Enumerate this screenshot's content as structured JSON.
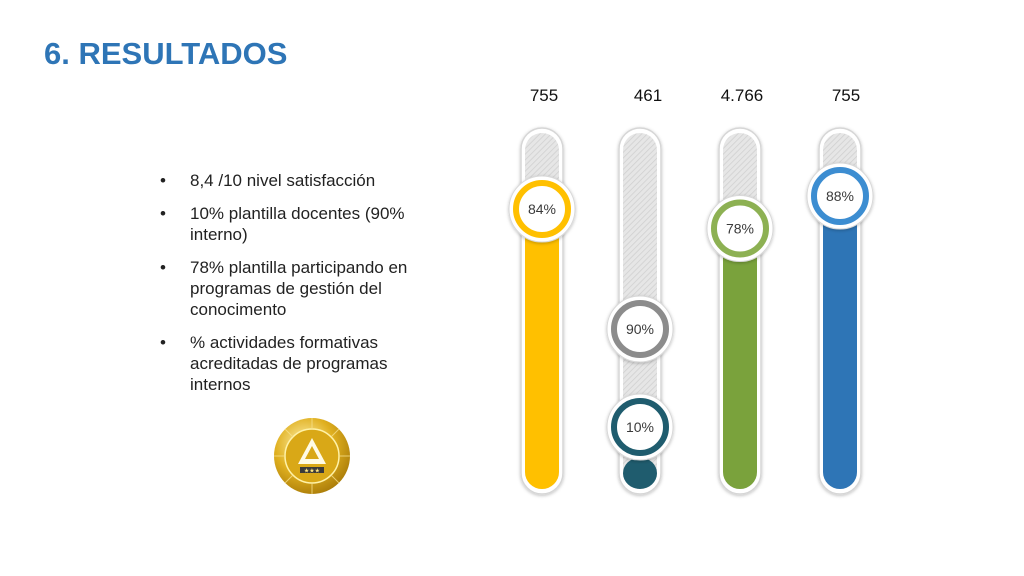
{
  "slide": {
    "title": "6. RESULTADOS",
    "bullets": [
      "8,4 /10 nivel satisfacción",
      "10% plantilla docentes (90% interno)",
      "78% plantilla participando en programas de gestión del conocimento",
      "% actividades formativas acreditadas de programas internos"
    ],
    "seal_icon": "gold-quality-seal-icon"
  },
  "chart_data": {
    "type": "bar",
    "categories": [
      "755",
      "461",
      "4.766",
      "755"
    ],
    "series": [
      {
        "values": [
          84,
          10,
          78,
          88
        ]
      }
    ],
    "secondary_markers": [
      null,
      90,
      null,
      null
    ],
    "ylim": [
      0,
      100
    ],
    "colors": [
      "#ffc000",
      "#1f5c6e",
      "#7aa23c",
      "#2e75b6"
    ],
    "marker_ring_colors": [
      "#ffc000",
      "#1f5c6e",
      "#8db153",
      "#3c8dd1"
    ],
    "secondary_marker_color": "#8c8c8c",
    "grid": false
  }
}
